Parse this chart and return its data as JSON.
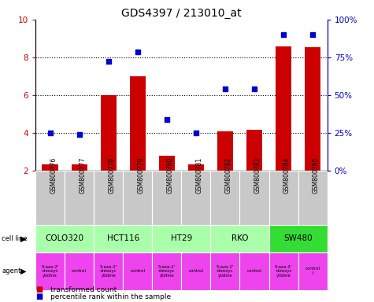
{
  "title": "GDS4397 / 213010_at",
  "samples": [
    "GSM800776",
    "GSM800777",
    "GSM800778",
    "GSM800779",
    "GSM800780",
    "GSM800781",
    "GSM800782",
    "GSM800783",
    "GSM800784",
    "GSM800785"
  ],
  "red_values": [
    2.35,
    2.35,
    6.0,
    7.0,
    2.8,
    2.35,
    4.1,
    4.15,
    8.6,
    8.55
  ],
  "blue_values": [
    4.0,
    3.9,
    7.8,
    8.3,
    4.7,
    4.0,
    6.35,
    6.35,
    9.2,
    9.2
  ],
  "ylim_left": [
    2,
    10
  ],
  "yticks_left": [
    2,
    4,
    6,
    8,
    10
  ],
  "yticks_right": [
    0,
    25,
    50,
    75,
    100
  ],
  "ytick_labels_right": [
    "0%",
    "25%",
    "50%",
    "75%",
    "100%"
  ],
  "cell_lines": [
    {
      "label": "COLO320",
      "start": 0,
      "end": 2,
      "color": "#aaffaa"
    },
    {
      "label": "HCT116",
      "start": 2,
      "end": 4,
      "color": "#aaffaa"
    },
    {
      "label": "HT29",
      "start": 4,
      "end": 6,
      "color": "#aaffaa"
    },
    {
      "label": "RKO",
      "start": 6,
      "end": 8,
      "color": "#aaffaa"
    },
    {
      "label": "SW480",
      "start": 8,
      "end": 10,
      "color": "#33dd33"
    }
  ],
  "agent_labels": [
    "5-aza-2'\n-deoxyc\nytidine",
    "control",
    "5-aza-2'\n-deoxyc\nytidine",
    "control",
    "5-aza-2'\n-deoxyc\nytidine",
    "control",
    "5-aza-2'\n-deoxyc\nytidine",
    "control",
    "5-aza-2'\n-deoxyc\nyti\ndine",
    "control\nl"
  ],
  "red_color": "#cc0000",
  "blue_color": "#0000cc",
  "bar_width": 0.55,
  "bar_bottom": 2.0,
  "sample_bg": "#c8c8c8",
  "agent_color": "#ee44ee",
  "legend_red": "transformed count",
  "legend_blue": "percentile rank within the sample"
}
